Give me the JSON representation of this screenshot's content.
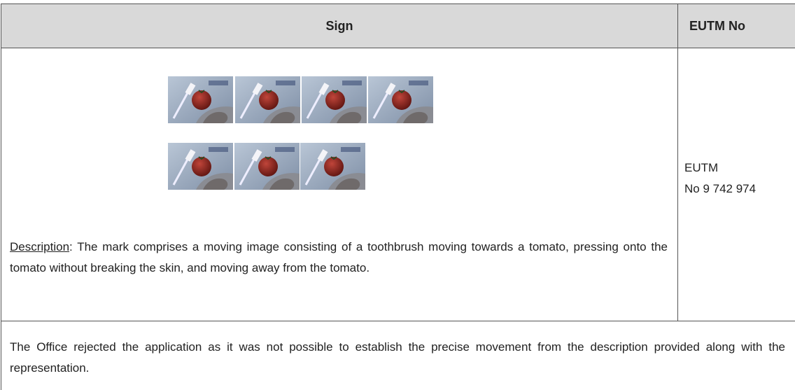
{
  "table": {
    "header": [
      "Sign",
      "EUTM No"
    ],
    "description": {
      "label": "Description",
      "text": ": The mark comprises a moving image consisting of a toothbrush moving towards a tomato, pressing onto the tomato without breaking the skin, and moving away from the tomato."
    },
    "eutm": [
      "EUTM",
      "No 9 742 974"
    ],
    "note": "The Office rejected the application as it was not possible to establish the precise movement from the description provided along with the representation."
  }
}
